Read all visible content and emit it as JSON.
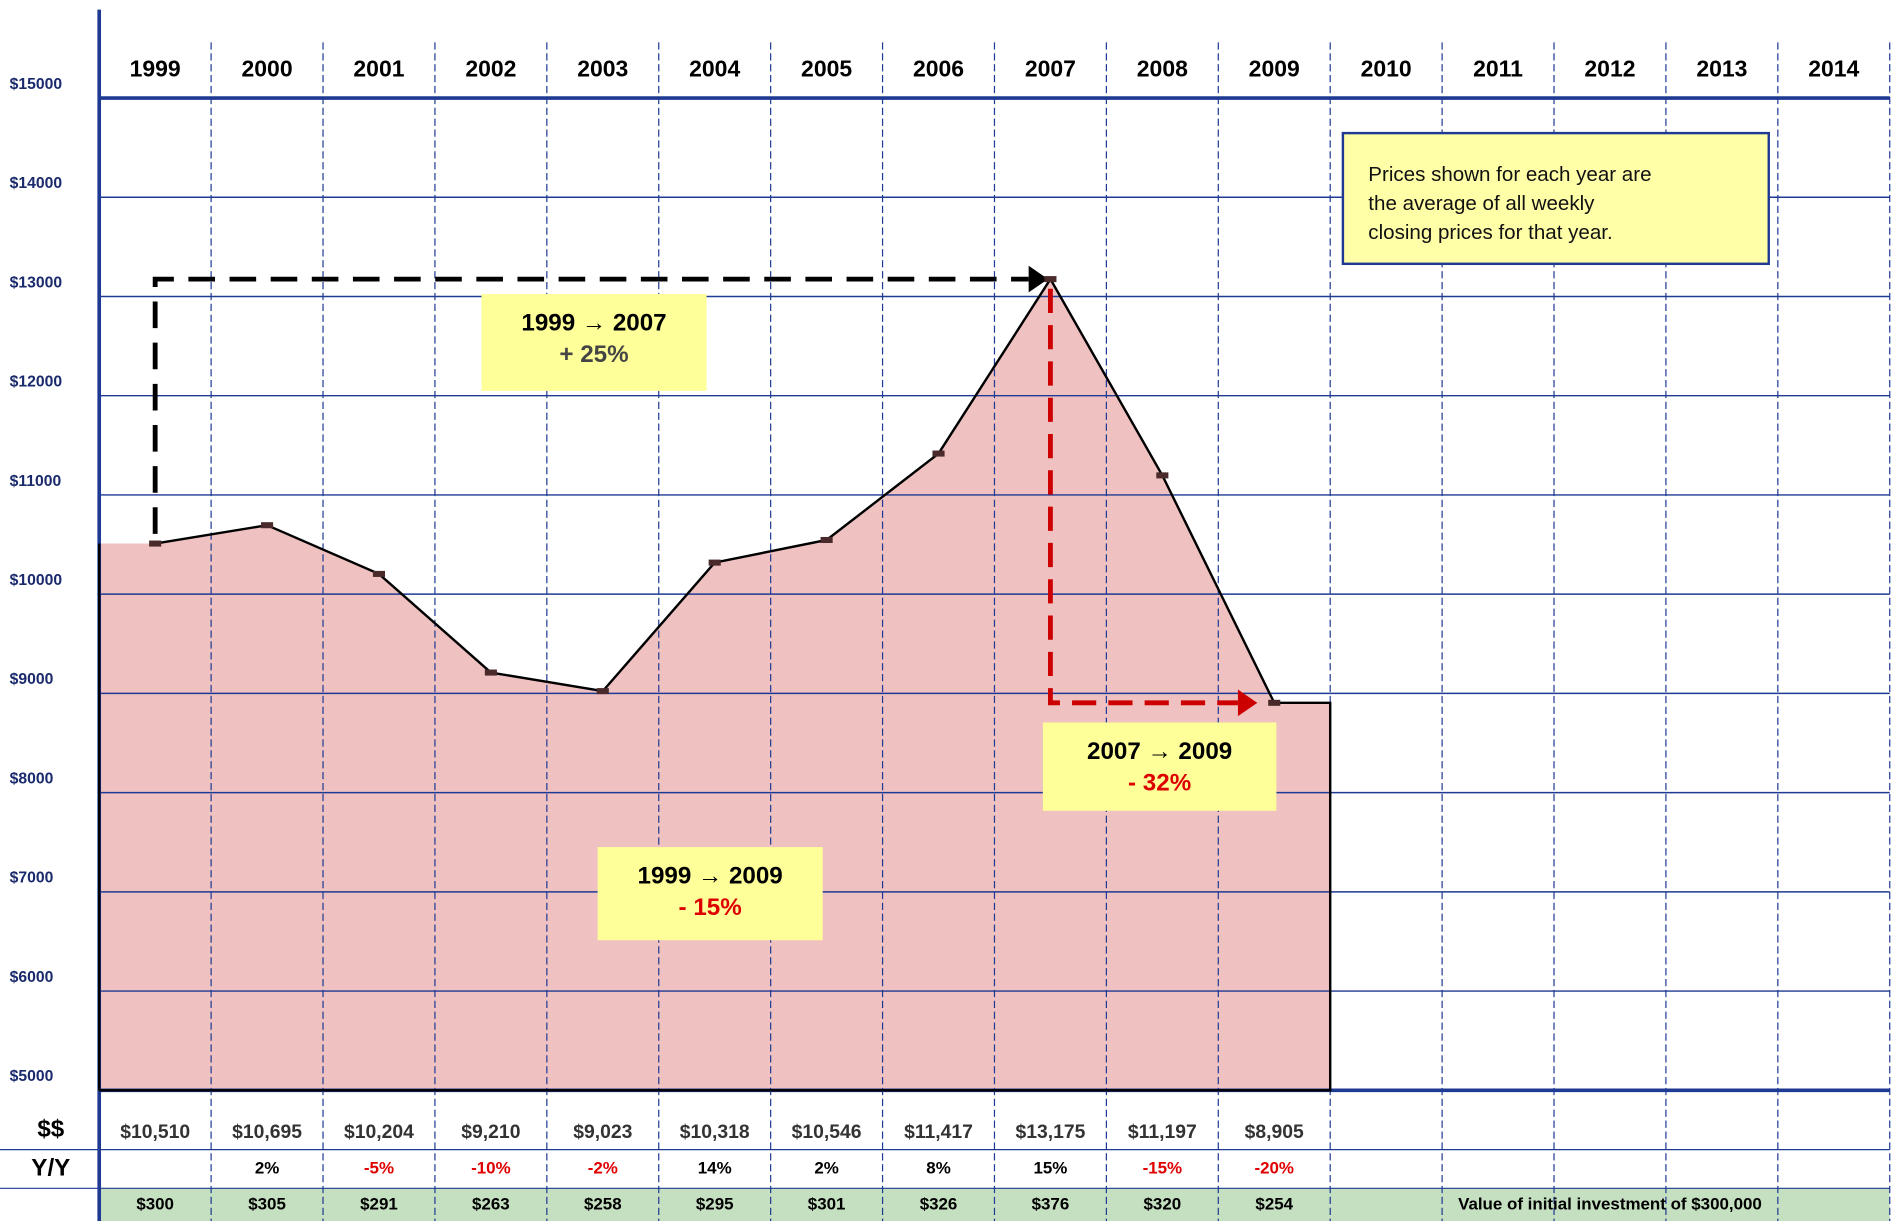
{
  "chart_data": {
    "type": "area",
    "categories": [
      "1999",
      "2000",
      "2001",
      "2002",
      "2003",
      "2004",
      "2005",
      "2006",
      "2007",
      "2008",
      "2009",
      "2010",
      "2011",
      "2012",
      "2013",
      "2014"
    ],
    "values": [
      10510,
      10695,
      10204,
      9210,
      9023,
      10318,
      10546,
      11417,
      13175,
      11197,
      8905,
      null,
      null,
      null,
      null,
      null
    ],
    "value_labels": [
      "$10,510",
      "$10,695",
      "$10,204",
      "$9,210",
      "$9,023",
      "$10,318",
      "$10,546",
      "$11,417",
      "$13,175",
      "$11,197",
      "$8,905",
      null,
      null,
      null,
      null,
      null
    ],
    "color": "#efc1c1",
    "line_color": "#000000",
    "grid_color": "#1f3a93",
    "ylim": [
      5000,
      15000
    ],
    "yticks": [
      {
        "value": 5000,
        "label": "$5000"
      },
      {
        "value": 6000,
        "label": "$6000"
      },
      {
        "value": 7000,
        "label": "$7000"
      },
      {
        "value": 8000,
        "label": "$8000"
      },
      {
        "value": 9000,
        "label": "$9000"
      },
      {
        "value": 10000,
        "label": "$10000"
      },
      {
        "value": 11000,
        "label": "$11000"
      },
      {
        "value": 12000,
        "label": "$12000"
      },
      {
        "value": 13000,
        "label": "$13000"
      },
      {
        "value": 14000,
        "label": "$14000"
      },
      {
        "value": 15000,
        "label": "$15000"
      }
    ],
    "grid": true,
    "dollar_row_label": "$$",
    "yoy": {
      "row_label": "Y/Y",
      "values": [
        null,
        2,
        -5,
        -10,
        -2,
        14,
        2,
        8,
        15,
        -15,
        -20,
        null,
        null,
        null,
        null,
        null
      ],
      "labels": [
        null,
        "2%",
        "-5%",
        "-10%",
        "-2%",
        "14%",
        "2%",
        "8%",
        "15%",
        "-15%",
        "-20%",
        null,
        null,
        null,
        null,
        null
      ]
    },
    "investment": {
      "note": "Value of initial investment of $300,000",
      "color": "#c5dfc1",
      "values": [
        300,
        305,
        291,
        263,
        258,
        295,
        301,
        326,
        376,
        320,
        254,
        null,
        null,
        null,
        null,
        null
      ],
      "labels": [
        "$300",
        "$305",
        "$291",
        "$263",
        "$258",
        "$295",
        "$301",
        "$326",
        "$376",
        "$320",
        "$254",
        null,
        null,
        null,
        null,
        null
      ]
    },
    "annotations": [
      {
        "lines": [
          "1999 → 2007",
          "+ 25%"
        ],
        "value_color": "#444444"
      },
      {
        "lines": [
          "2007 → 2009",
          "- 32%"
        ],
        "value_color": "#dd0000"
      },
      {
        "lines": [
          "1999 → 2009",
          "- 15%"
        ],
        "value_color": "#dd0000"
      }
    ],
    "note": [
      "Prices shown for each year are",
      "the average of all weekly",
      "closing prices for that year."
    ]
  }
}
